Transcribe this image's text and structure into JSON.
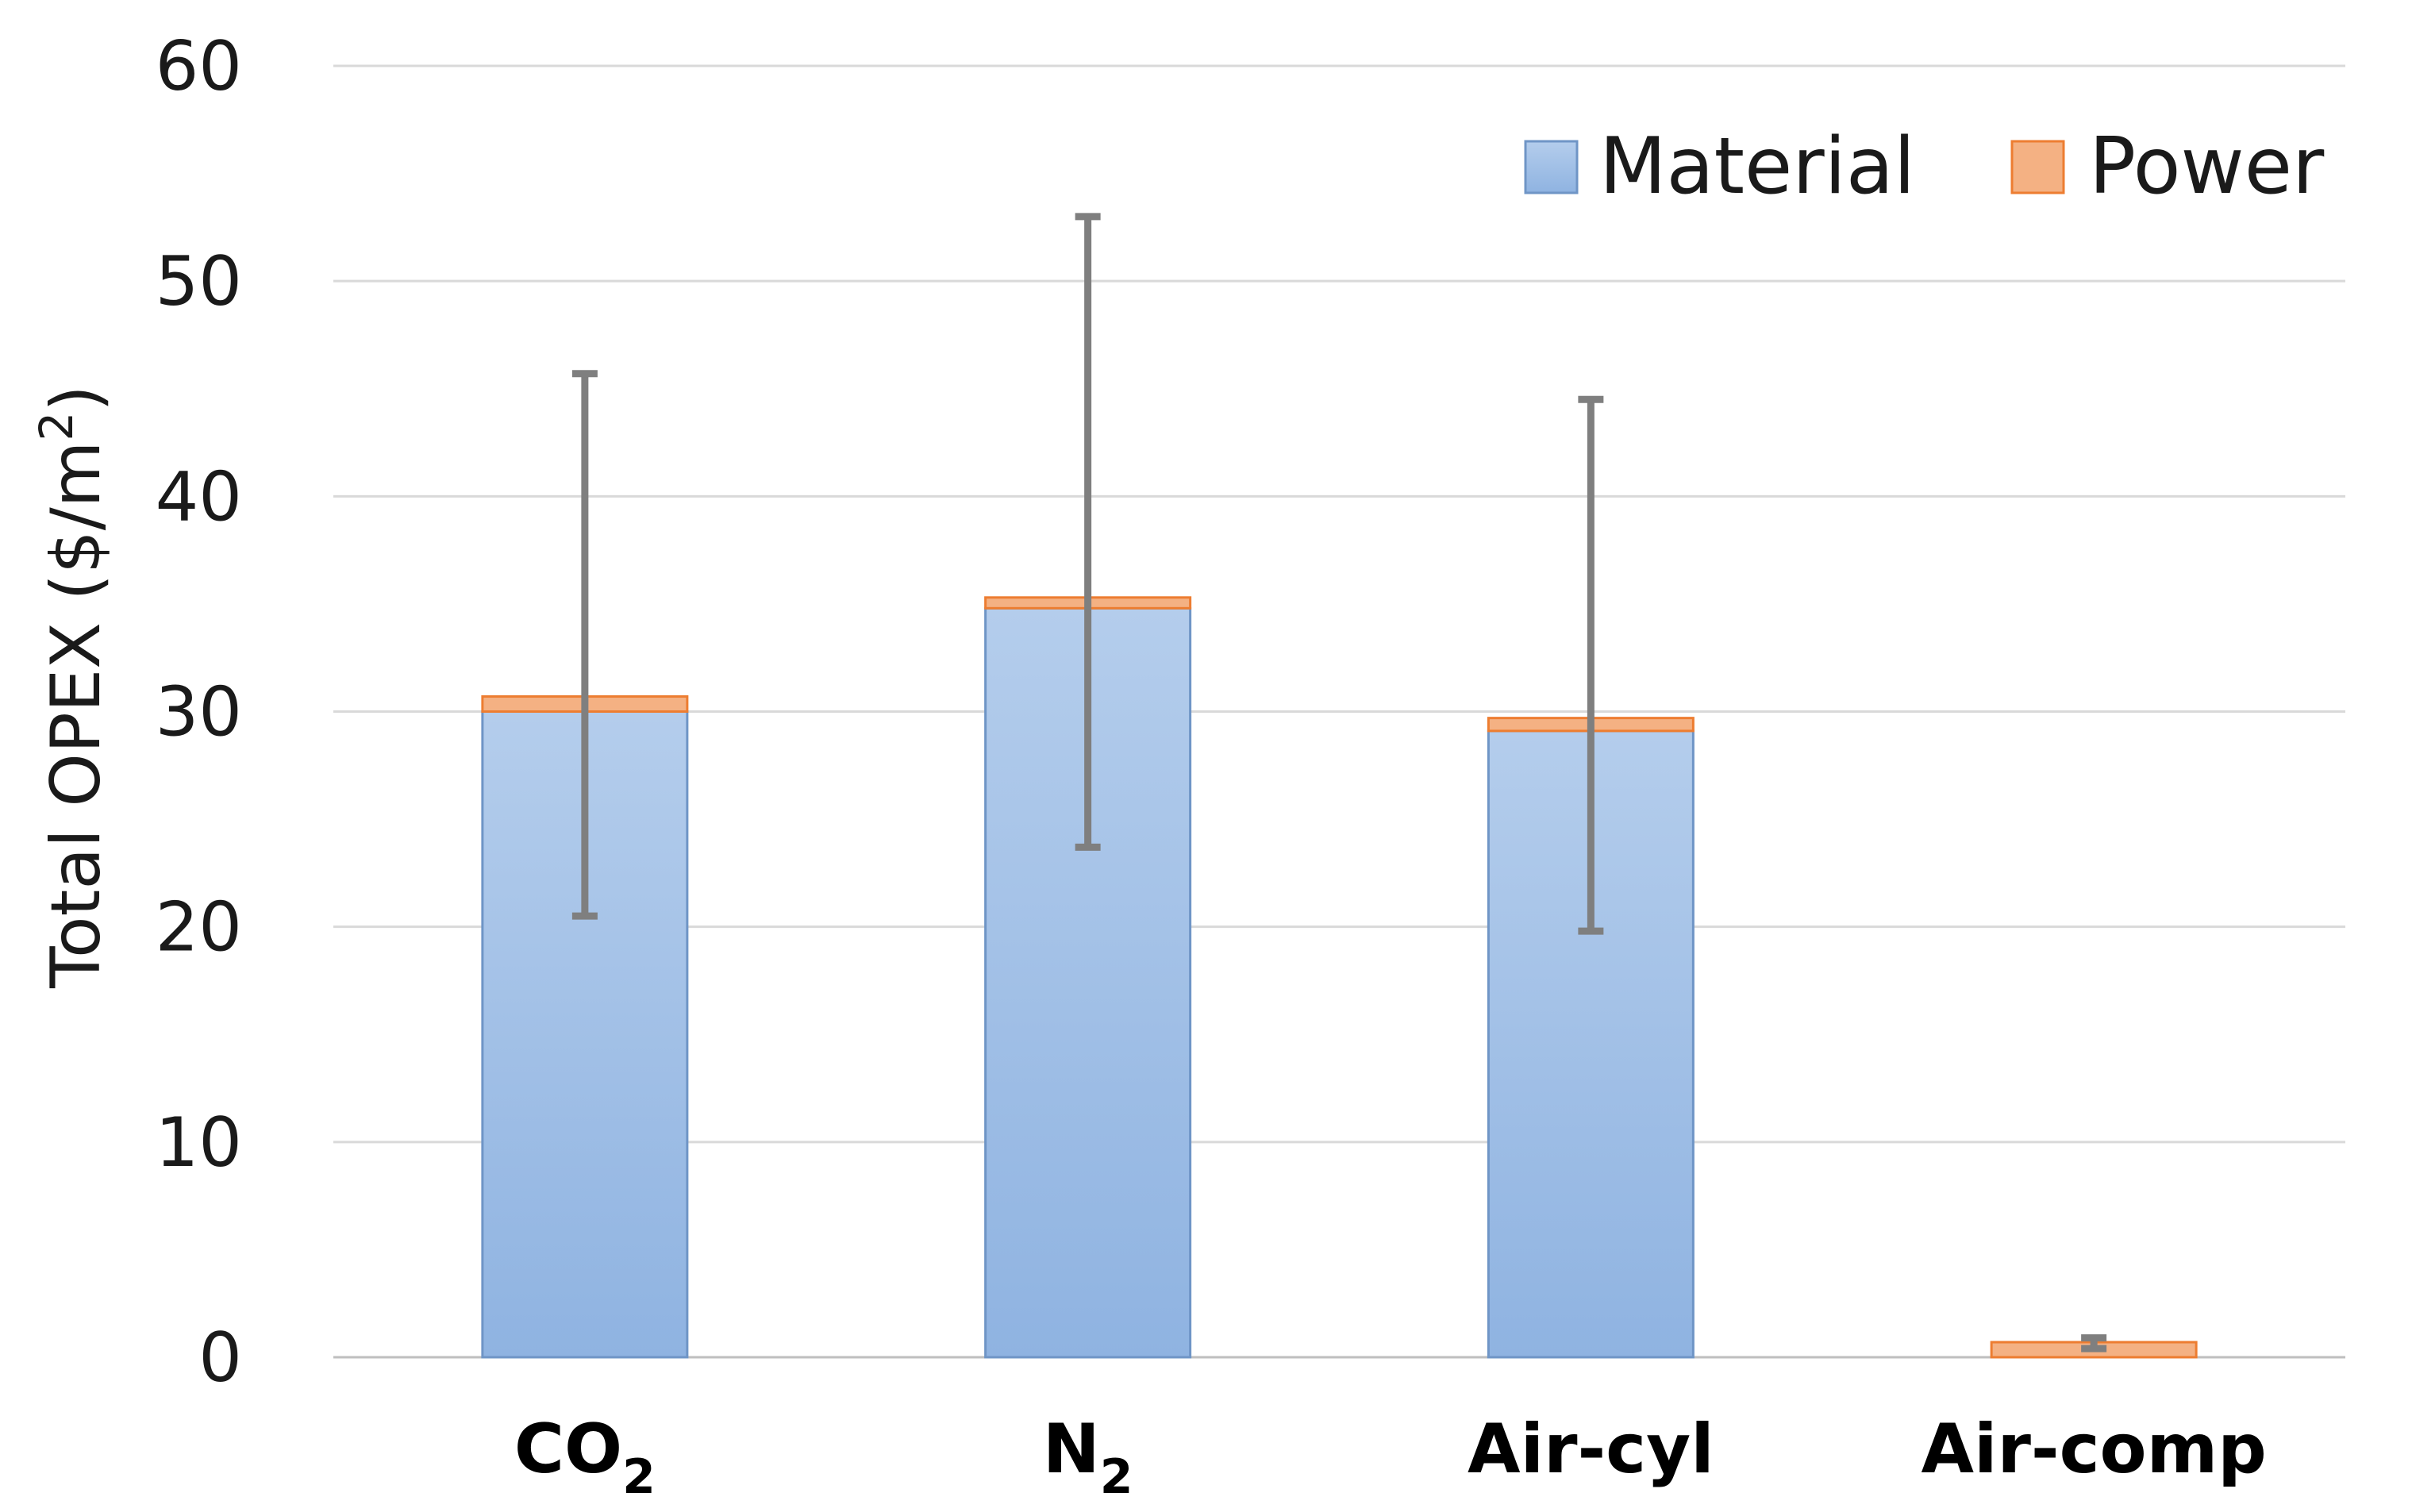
{
  "chart_data": {
    "type": "bar",
    "stacked": true,
    "title": "",
    "xlabel": "",
    "ylabel": {
      "prefix": "Total OPEX ($/m",
      "sup": "2",
      "suffix": ")"
    },
    "ylim": [
      0,
      60
    ],
    "yticks": [
      0,
      10,
      20,
      30,
      40,
      50,
      60
    ],
    "grid": true,
    "legend_position": "top-right",
    "categories": [
      {
        "base": "CO",
        "sub": "2"
      },
      {
        "base": "N",
        "sub": "2"
      },
      {
        "base": "Air-cyl",
        "sub": ""
      },
      {
        "base": "Air-comp",
        "sub": ""
      }
    ],
    "series": [
      {
        "name": "Material",
        "color": "#9dbfe6",
        "stroke": "#6f95c6",
        "values": [
          30.0,
          34.8,
          29.1,
          0.0
        ]
      },
      {
        "name": "Power",
        "color": "#f4b183",
        "stroke": "#ed7d31",
        "values": [
          0.7,
          0.5,
          0.6,
          0.7
        ]
      }
    ],
    "error_bars": {
      "color": "#7f7f7f",
      "low": [
        20.5,
        23.7,
        19.8,
        0.4
      ],
      "high": [
        45.7,
        53.0,
        44.5,
        0.9
      ]
    }
  }
}
